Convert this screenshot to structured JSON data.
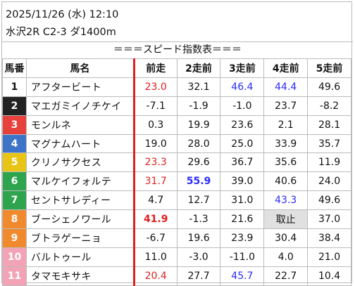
{
  "header": {
    "datetime": "2025/11/26 (水) 12:10",
    "race": "水沢2R C2-3 ダ1400m"
  },
  "banner": "＝＝＝スピード指数表＝＝＝",
  "columns": [
    "馬番",
    "馬名",
    "前走",
    "2走前",
    "3走前",
    "4走前",
    "5走前"
  ],
  "frame_colors": {
    "1": "#ffffff",
    "2": "#222222",
    "3": "#e8403a",
    "4": "#3d74c7",
    "5": "#e8c515",
    "6": "#2ea44f",
    "7": "#2ea44f",
    "8": "#f08a2c",
    "9": "#f08a2c",
    "10": "#f2a3b6",
    "11": "#f2a3b6"
  },
  "rows": [
    {
      "num": "1",
      "name": "アフタービート",
      "vals": [
        {
          "t": "23.0",
          "c": "red"
        },
        {
          "t": "32.1"
        },
        {
          "t": "46.4",
          "c": "blue"
        },
        {
          "t": "44.4",
          "c": "blue"
        },
        {
          "t": "49.6"
        }
      ]
    },
    {
      "num": "2",
      "name": "マエガミイノチケイ",
      "vals": [
        {
          "t": "-7.1"
        },
        {
          "t": "-1.9"
        },
        {
          "t": "-1.0"
        },
        {
          "t": "23.7"
        },
        {
          "t": "-8.2"
        }
      ]
    },
    {
      "num": "3",
      "name": "モンルネ",
      "vals": [
        {
          "t": "0.3"
        },
        {
          "t": "19.9"
        },
        {
          "t": "23.6"
        },
        {
          "t": "2.1"
        },
        {
          "t": "28.1"
        }
      ]
    },
    {
      "num": "4",
      "name": "マグナムハート",
      "vals": [
        {
          "t": "19.0"
        },
        {
          "t": "28.0"
        },
        {
          "t": "25.0"
        },
        {
          "t": "33.9"
        },
        {
          "t": "35.7"
        }
      ]
    },
    {
      "num": "5",
      "name": "クリノサクセス",
      "vals": [
        {
          "t": "23.3",
          "c": "red"
        },
        {
          "t": "29.6"
        },
        {
          "t": "36.7"
        },
        {
          "t": "35.6"
        },
        {
          "t": "11.9"
        }
      ]
    },
    {
      "num": "6",
      "name": "マルケイフォルテ",
      "vals": [
        {
          "t": "31.7",
          "c": "red"
        },
        {
          "t": "55.9",
          "c": "blue",
          "b": true
        },
        {
          "t": "39.0"
        },
        {
          "t": "40.6"
        },
        {
          "t": "24.0"
        }
      ]
    },
    {
      "num": "7",
      "name": "セントサレディー",
      "vals": [
        {
          "t": "4.7"
        },
        {
          "t": "12.7"
        },
        {
          "t": "31.0"
        },
        {
          "t": "43.3",
          "c": "blue"
        },
        {
          "t": "49.6"
        }
      ]
    },
    {
      "num": "8",
      "name": "ブーシェノワール",
      "vals": [
        {
          "t": "41.9",
          "c": "red",
          "b": true
        },
        {
          "t": "-1.3"
        },
        {
          "t": "21.6"
        },
        {
          "t": "取止",
          "s": true
        },
        {
          "t": "37.0"
        }
      ]
    },
    {
      "num": "9",
      "name": "ブトラゲーニョ",
      "vals": [
        {
          "t": "-6.7"
        },
        {
          "t": "19.6"
        },
        {
          "t": "23.9"
        },
        {
          "t": "30.4"
        },
        {
          "t": "38.4"
        }
      ]
    },
    {
      "num": "10",
      "name": "バルトゥール",
      "vals": [
        {
          "t": "11.0"
        },
        {
          "t": "-3.0"
        },
        {
          "t": "-11.0"
        },
        {
          "t": "4.0"
        },
        {
          "t": "21.0"
        }
      ]
    },
    {
      "num": "11",
      "name": "タマモキサキ",
      "vals": [
        {
          "t": "20.4",
          "c": "red"
        },
        {
          "t": "27.7"
        },
        {
          "t": "45.7",
          "c": "blue"
        },
        {
          "t": "22.7"
        },
        {
          "t": "10.4"
        }
      ]
    }
  ]
}
